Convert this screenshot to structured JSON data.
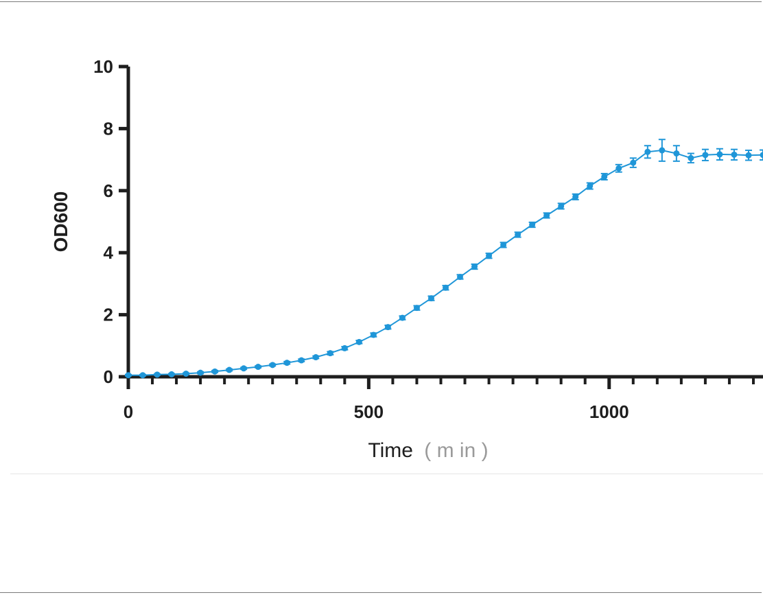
{
  "chart_data": {
    "type": "line",
    "title": "",
    "xlabel": "Time",
    "xlabel_unit": "( m in )",
    "ylabel": "OD600",
    "xlim": [
      0,
      1320
    ],
    "ylim": [
      0,
      10
    ],
    "xticks": [
      0,
      500,
      1000
    ],
    "yticks": [
      0,
      2,
      4,
      6,
      8,
      10
    ],
    "grid": false,
    "legend": "none",
    "colors": {
      "series": "#1f96d8",
      "axis": "#1e1e1e"
    },
    "series": [
      {
        "x": [
          0,
          30,
          60,
          90,
          120,
          150,
          180,
          210,
          240,
          270,
          300,
          330,
          360,
          390,
          420,
          450,
          480,
          510,
          540,
          570,
          600,
          630,
          660,
          690,
          720,
          750,
          780,
          810,
          840,
          870,
          900,
          930,
          960,
          990,
          1020,
          1050,
          1080,
          1110,
          1140,
          1170,
          1200,
          1230,
          1260,
          1290,
          1320
        ],
        "y": [
          0.05,
          0.05,
          0.07,
          0.08,
          0.1,
          0.13,
          0.17,
          0.22,
          0.27,
          0.32,
          0.38,
          0.45,
          0.53,
          0.63,
          0.76,
          0.92,
          1.12,
          1.35,
          1.6,
          1.9,
          2.22,
          2.53,
          2.87,
          3.22,
          3.55,
          3.9,
          4.25,
          4.58,
          4.9,
          5.2,
          5.5,
          5.8,
          6.15,
          6.45,
          6.72,
          6.9,
          7.25,
          7.3,
          7.2,
          7.05,
          7.15,
          7.17,
          7.16,
          7.14,
          7.15
        ],
        "error": [
          0.02,
          0.02,
          0.02,
          0.02,
          0.02,
          0.03,
          0.03,
          0.03,
          0.03,
          0.03,
          0.03,
          0.04,
          0.04,
          0.04,
          0.05,
          0.05,
          0.05,
          0.06,
          0.06,
          0.06,
          0.07,
          0.07,
          0.07,
          0.07,
          0.08,
          0.08,
          0.08,
          0.08,
          0.08,
          0.08,
          0.09,
          0.09,
          0.1,
          0.1,
          0.12,
          0.15,
          0.2,
          0.35,
          0.25,
          0.15,
          0.18,
          0.18,
          0.17,
          0.16,
          0.16
        ]
      }
    ]
  }
}
